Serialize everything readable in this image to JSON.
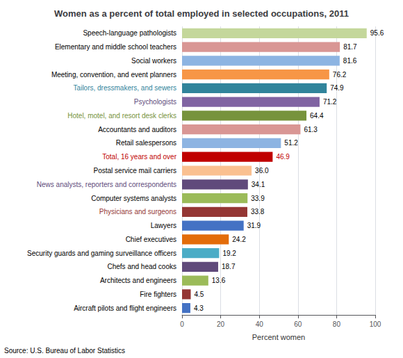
{
  "chart_data": {
    "type": "bar",
    "orientation": "horizontal",
    "title": "Women as a percent of total employed in selected occupations, 2011",
    "xlabel": "Percent women",
    "source": "Source: U.S. Bureau of Labor Statistics",
    "categories": [
      "Aircraft pilots and flight engineers",
      "Fire fighters",
      "Architects and engineers",
      "Chefs and head cooks",
      "Security guards and gaming surveillance officers",
      "Chief executives",
      "Lawyers",
      "Physicians and surgeons",
      "Computer systems analysts",
      "News analysts, reporters and correspondents",
      "Postal service mail carriers",
      "Total, 16 years and over",
      "Retail salespersons",
      "Accountants and auditors",
      "Hotel, motel, and resort desk clerks",
      "Psychologists",
      "Tailors, dressmakers, and sewers",
      "Meeting, convention, and event planners",
      "Social workers",
      "Elementary and middle school teachers",
      "Speech-language pathologists"
    ],
    "values": [
      4.3,
      4.5,
      13.6,
      18.7,
      19.2,
      24.2,
      31.9,
      33.8,
      33.9,
      34.1,
      36.0,
      46.9,
      51.2,
      61.3,
      64.4,
      71.2,
      74.9,
      76.2,
      81.6,
      81.7,
      95.6
    ],
    "value_labels": [
      "4.3",
      "4.5",
      "13.6",
      "18.7",
      "19.2",
      "24.2",
      "31.9",
      "33.8",
      "33.9",
      "34.1",
      "36.0",
      "46.9",
      "51.2",
      "61.3",
      "64.4",
      "71.2",
      "74.9",
      "76.2",
      "81.6",
      "81.7",
      "95.6"
    ],
    "data_labels": true,
    "colors": [
      "#4472c4",
      "#943634",
      "#9bbb59",
      "#604a7b",
      "#4bacc6",
      "#e36c09",
      "#4472c4",
      "#943634",
      "#9bbb59",
      "#604a7b",
      "#fac090",
      "#c00000",
      "#8db4e2",
      "#d99694",
      "#77933c",
      "#8064a2",
      "#31849b",
      "#f79646",
      "#8db4e2",
      "#d99694",
      "#c4d79b"
    ],
    "label_colors": [
      "black",
      "black",
      "black",
      "black",
      "black",
      "black",
      "black",
      "#943634",
      "black",
      "#604a7b",
      "black",
      "#c00000",
      "black",
      "black",
      "#77933c",
      "#604a7b",
      "#31849b",
      "black",
      "black",
      "black",
      "black"
    ],
    "value_label_colors": [
      "black",
      "black",
      "black",
      "black",
      "black",
      "black",
      "black",
      "black",
      "black",
      "black",
      "black",
      "#c00000",
      "black",
      "black",
      "black",
      "black",
      "black",
      "black",
      "black",
      "black",
      "black"
    ],
    "xlim": [
      0,
      100
    ],
    "xticks": [
      0,
      20,
      40,
      60,
      80,
      100
    ],
    "grid": true
  }
}
